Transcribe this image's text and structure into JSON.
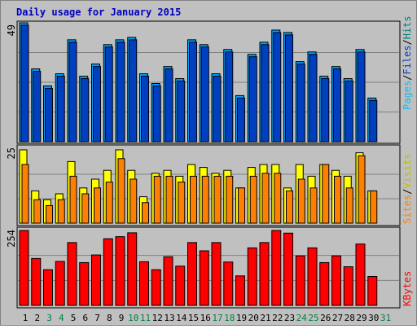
{
  "title": "Daily usage for January 2015",
  "colors": {
    "background": "#c0c0c0",
    "title": "#0000c0",
    "grid": "#808080",
    "hits": "#00a0ff",
    "files": "#0040c0",
    "pages": "#00e0ff",
    "visits": "#ffff00",
    "sites": "#ff8000",
    "kbytes": "#ff0000",
    "weekend_label": "#008040",
    "weekday_label": "#000000"
  },
  "labels": {
    "top_max": "49",
    "mid_max": "25",
    "bottom_max": "254",
    "legend_pages": "Pages",
    "legend_files": "Files",
    "legend_hits": "Hits",
    "legend_sep": "/",
    "legend_sites": "Sites",
    "legend_visits": "Visits",
    "legend_kbytes": "KBytes"
  },
  "chart_data": {
    "type": "bar",
    "title": "Daily usage for January 2015",
    "categories": [
      "1",
      "2",
      "3",
      "4",
      "5",
      "6",
      "7",
      "8",
      "9",
      "10",
      "11",
      "12",
      "13",
      "14",
      "15",
      "16",
      "17",
      "18",
      "19",
      "20",
      "21",
      "22",
      "23",
      "24",
      "25",
      "26",
      "27",
      "28",
      "29",
      "30",
      "31"
    ],
    "weekend_days": [
      "3",
      "4",
      "10",
      "11",
      "17",
      "18",
      "24",
      "25",
      "31"
    ],
    "panels": [
      {
        "name": "hits",
        "ylim": [
          0,
          49
        ],
        "series": [
          {
            "name": "Hits",
            "values": [
              49,
              30,
              23,
              28,
              42,
              27,
              32,
              40,
              42,
              43,
              28,
              24,
              31,
              26,
              42,
              40,
              28,
              38,
              19,
              36,
              41,
              46,
              45,
              33,
              37,
              27,
              31,
              26,
              38,
              18,
              0
            ]
          },
          {
            "name": "Files",
            "values": [
              48,
              29,
              22,
              27,
              41,
              26,
              31,
              39,
              41,
              42,
              27,
              23,
              30,
              25,
              41,
              39,
              27,
              37,
              18,
              35,
              40,
              45,
              44,
              32,
              36,
              26,
              30,
              25,
              37,
              17,
              0
            ]
          },
          {
            "name": "Pages",
            "values": [
              0,
              0,
              0,
              0,
              0,
              0,
              0,
              0,
              0,
              0,
              0,
              0,
              0,
              0,
              0,
              0,
              0,
              0,
              0,
              0,
              0,
              0,
              0,
              0,
              0,
              0,
              0,
              0,
              0,
              0,
              0
            ]
          }
        ]
      },
      {
        "name": "visits",
        "ylim": [
          0,
          25
        ],
        "series": [
          {
            "name": "Visits",
            "values": [
              25,
              11,
              8,
              10,
              21,
              12,
              15,
              18,
              25,
              18,
              9,
              17,
              18,
              16,
              20,
              19,
              17,
              18,
              12,
              19,
              20,
              20,
              12,
              20,
              16,
              20,
              18,
              16,
              24,
              11,
              0
            ]
          },
          {
            "name": "Sites",
            "values": [
              20,
              8,
              6,
              8,
              16,
              10,
              12,
              14,
              22,
              15,
              7,
              16,
              16,
              14,
              16,
              16,
              16,
              16,
              12,
              16,
              17,
              17,
              11,
              15,
              12,
              20,
              16,
              12,
              23,
              11,
              0
            ]
          }
        ]
      },
      {
        "name": "kbytes",
        "ylim": [
          0,
          254
        ],
        "series": [
          {
            "name": "KBytes",
            "values": [
              254,
              159,
              121,
              149,
              213,
              145,
              171,
              226,
              233,
              246,
              148,
              121,
              165,
              133,
              213,
              185,
              213,
              147,
              100,
              195,
              213,
              254,
              245,
              168,
              195,
              145,
              168,
              131,
              208,
              98,
              0
            ]
          }
        ]
      }
    ]
  }
}
